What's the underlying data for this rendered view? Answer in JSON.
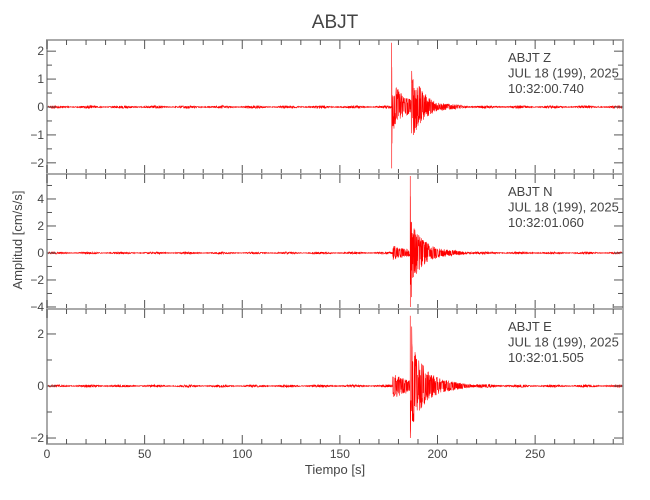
{
  "chart_data": {
    "type": "line",
    "title": "ABJT",
    "xlabel": "Tiempo [s]",
    "ylabel": "Amplitud [cm/s/s]",
    "xlim": [
      0,
      295
    ],
    "xticks": [
      0,
      50,
      100,
      150,
      200,
      250
    ],
    "xminor_step": 10,
    "grid": false,
    "line_color": "#ff0000",
    "panels": [
      {
        "station": "ABJT",
        "component": "Z",
        "label_station": "ABJT   Z",
        "date": "JUL 18 (199), 2025",
        "time": "10:32:00.740",
        "ylim": [
          -2.4,
          2.4
        ],
        "yticks": [
          -2,
          -1,
          0,
          1,
          2
        ],
        "noise": 0.03,
        "events": [
          {
            "t": 176.5,
            "peak_max": 2.3,
            "peak_min": -2.2,
            "decay_s": 0.4
          },
          {
            "t": 177,
            "peak_max": 0.9,
            "peak_min": -0.7,
            "decay_s": 8
          },
          {
            "t": 186.5,
            "peak_max": 1.1,
            "peak_min": -1.0,
            "decay_s": 6
          }
        ]
      },
      {
        "station": "ABJT",
        "component": "N",
        "label_station": "ABJT   N",
        "date": "JUL 18 (199), 2025",
        "time": "10:32:01.060",
        "ylim": [
          -4.15,
          5.85
        ],
        "yticks": [
          -4,
          -2,
          0,
          2,
          4
        ],
        "noise": 0.05,
        "events": [
          {
            "t": 177,
            "peak_max": 0.5,
            "peak_min": -0.5,
            "decay_s": 12
          },
          {
            "t": 186,
            "peak_max": 5.7,
            "peak_min": -4.0,
            "decay_s": 0.5
          },
          {
            "t": 186.5,
            "peak_max": 2.0,
            "peak_min": -2.0,
            "decay_s": 7
          }
        ]
      },
      {
        "station": "ABJT",
        "component": "E",
        "label_station": "ABJT   E",
        "date": "JUL 18 (199), 2025",
        "time": "10:32:01.505",
        "ylim": [
          -2.23,
          2.96
        ],
        "yticks": [
          -2,
          0,
          2
        ],
        "yminor_step": 1,
        "noise": 0.03,
        "events": [
          {
            "t": 177,
            "peak_max": 0.45,
            "peak_min": -0.5,
            "decay_s": 12
          },
          {
            "t": 186,
            "peak_max": 2.7,
            "peak_min": -2.0,
            "decay_s": 0.6
          },
          {
            "t": 186.5,
            "peak_max": 1.4,
            "peak_min": -1.3,
            "decay_s": 8
          }
        ]
      }
    ]
  }
}
